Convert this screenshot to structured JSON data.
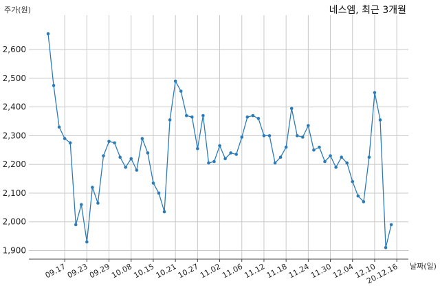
{
  "chart_data": {
    "type": "line",
    "title": "네스엠, 최근 3개월",
    "ylabel": "주가(원)",
    "xlabel": "날짜(일)",
    "ylim": [
      1870,
      2720
    ],
    "yticks": [
      1900,
      2000,
      2100,
      2200,
      2300,
      2400,
      2500,
      2600
    ],
    "ytick_labels": [
      "1,900",
      "2,000",
      "2,100",
      "2,200",
      "2,300",
      "2,400",
      "2,500",
      "2,600"
    ],
    "grid": true,
    "xtick_labels": [
      "09.17",
      "09.23",
      "09.29",
      "10.08",
      "10.15",
      "10.21",
      "10.27",
      "11.02",
      "11.06",
      "11.12",
      "11.18",
      "11.24",
      "11.30",
      "12.04",
      "12.10",
      "20.12.16"
    ],
    "xtick_index": [
      3,
      7,
      11,
      15,
      19,
      23,
      27,
      31,
      35,
      39,
      43,
      47,
      51,
      55,
      59,
      63
    ],
    "values": [
      2655,
      2475,
      2330,
      2290,
      2275,
      1990,
      2060,
      1930,
      2120,
      2065,
      2230,
      2280,
      2275,
      2225,
      2190,
      2220,
      2180,
      2290,
      2240,
      2135,
      2100,
      2035,
      2355,
      2490,
      2455,
      2370,
      2365,
      2255,
      2370,
      2205,
      2210,
      2265,
      2220,
      2240,
      2235,
      2295,
      2365,
      2370,
      2360,
      2300,
      2300,
      2205,
      2225,
      2260,
      2395,
      2300,
      2295,
      2335,
      2250,
      2260,
      2210,
      2230,
      2190,
      2225,
      2205,
      2140,
      2090,
      2070,
      2225,
      2450,
      2355,
      1910,
      1990
    ]
  }
}
